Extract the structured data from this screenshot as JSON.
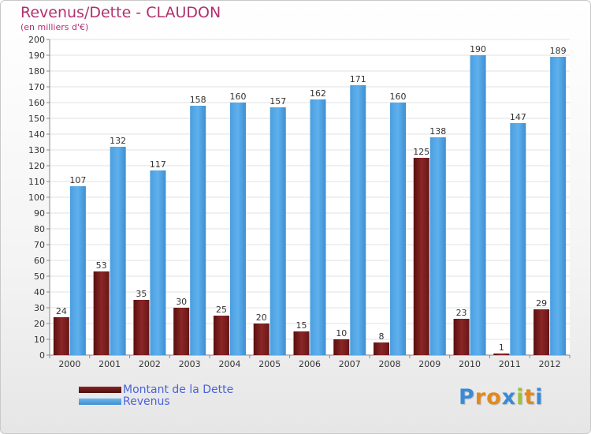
{
  "colors": {
    "debt": "#7d1d1d",
    "revenue": "#55a7e5",
    "title": "#b0306e",
    "legend_text": "#4a63d8"
  },
  "chart_data": {
    "type": "bar",
    "title": "Revenus/Dette - CLAUDON",
    "subtitle": "(en milliers d'€)",
    "categories": [
      "2000",
      "2001",
      "2002",
      "2003",
      "2004",
      "2005",
      "2006",
      "2007",
      "2008",
      "2009",
      "2010",
      "2011",
      "2012"
    ],
    "series": [
      {
        "name": "Montant de la Dette",
        "values": [
          24,
          53,
          35,
          30,
          25,
          20,
          15,
          10,
          8,
          125,
          23,
          1,
          29
        ]
      },
      {
        "name": "Revenus",
        "values": [
          107,
          132,
          117,
          158,
          160,
          157,
          162,
          171,
          160,
          138,
          190,
          147,
          189
        ]
      }
    ],
    "ylim": [
      0,
      200
    ],
    "yticks": [
      0,
      10,
      20,
      30,
      40,
      50,
      60,
      70,
      80,
      90,
      100,
      110,
      120,
      130,
      140,
      150,
      160,
      170,
      180,
      190,
      200
    ],
    "grid": true,
    "legend_position": "bottom-left"
  },
  "logo": {
    "text": "Proxiti"
  }
}
